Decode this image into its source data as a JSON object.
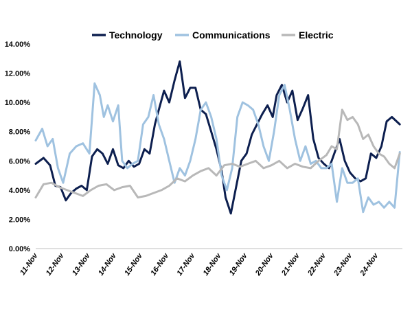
{
  "chart_data": {
    "type": "line",
    "title": "",
    "xlabel": "",
    "ylabel": "",
    "ylim": [
      0,
      14
    ],
    "y_ticks": [
      0,
      2,
      4,
      6,
      8,
      10,
      12,
      14
    ],
    "y_tick_labels": [
      "0.00%",
      "2.00%",
      "4.00%",
      "6.00%",
      "8.00%",
      "10.00%",
      "12.00%",
      "14.00%"
    ],
    "x_range": [
      0,
      14
    ],
    "x_ticks": [
      0,
      1,
      2,
      3,
      4,
      5,
      6,
      7,
      8,
      9,
      10,
      11,
      12,
      13
    ],
    "x_tick_labels": [
      "11-Nov",
      "12-Nov",
      "13-Nov",
      "14-Nov",
      "15-Nov",
      "16-Nov",
      "17-Nov",
      "18-Nov",
      "19-Nov",
      "20-Nov",
      "21-Nov",
      "22-Nov",
      "23-Nov",
      "24-Nov"
    ],
    "legend_position": "top",
    "grid": false,
    "series": [
      {
        "name": "Technology",
        "color": "#0d1f4f",
        "x": [
          0,
          0.3,
          0.55,
          0.75,
          0.95,
          1.15,
          1.35,
          1.55,
          1.75,
          1.95,
          2.15,
          2.35,
          2.55,
          2.75,
          2.95,
          3.15,
          3.35,
          3.55,
          3.75,
          3.95,
          4.15,
          4.35,
          4.55,
          4.7,
          4.9,
          5.1,
          5.3,
          5.5,
          5.7,
          5.9,
          6.1,
          6.3,
          6.5,
          6.7,
          6.9,
          7.1,
          7.25,
          7.45,
          7.65,
          7.85,
          8.05,
          8.25,
          8.45,
          8.65,
          8.85,
          9.05,
          9.2,
          9.4,
          9.6,
          9.8,
          10.0,
          10.2,
          10.4,
          10.6,
          10.8,
          11.0,
          11.2,
          11.4,
          11.6,
          11.8,
          12.0,
          12.2,
          12.4,
          12.6,
          12.8,
          13.0,
          13.2,
          13.4,
          13.6,
          13.9
        ],
        "values": [
          5.8,
          6.2,
          5.7,
          4.3,
          4.2,
          3.3,
          3.8,
          4.1,
          4.3,
          4.0,
          6.3,
          6.8,
          6.5,
          5.8,
          6.8,
          5.7,
          5.5,
          6.0,
          5.6,
          5.8,
          6.8,
          6.5,
          8.5,
          9.5,
          10.8,
          10.0,
          11.5,
          12.8,
          10.3,
          11.0,
          11.0,
          9.5,
          9.2,
          8.0,
          6.8,
          5.3,
          3.5,
          2.4,
          4.2,
          6.0,
          6.5,
          7.8,
          8.5,
          9.2,
          9.8,
          9.0,
          10.5,
          11.2,
          10.0,
          10.8,
          8.8,
          9.6,
          10.5,
          7.5,
          6.2,
          5.8,
          5.5,
          6.5,
          7.5,
          6.0,
          5.2,
          4.8,
          4.6,
          4.8,
          6.5,
          6.2,
          7.0,
          8.7,
          9.0,
          8.5
        ]
      },
      {
        "name": "Communications",
        "color": "#9fc2e0",
        "x": [
          0,
          0.25,
          0.45,
          0.65,
          0.85,
          1.05,
          1.3,
          1.55,
          1.8,
          2.05,
          2.25,
          2.45,
          2.6,
          2.75,
          2.95,
          3.15,
          3.3,
          3.5,
          3.7,
          3.9,
          4.1,
          4.3,
          4.5,
          4.7,
          4.9,
          5.1,
          5.3,
          5.5,
          5.7,
          5.9,
          6.1,
          6.3,
          6.5,
          6.7,
          6.9,
          7.1,
          7.3,
          7.5,
          7.7,
          7.9,
          8.1,
          8.3,
          8.5,
          8.7,
          8.9,
          9.1,
          9.3,
          9.5,
          9.7,
          9.9,
          10.1,
          10.3,
          10.5,
          10.7,
          10.9,
          11.1,
          11.3,
          11.5,
          11.7,
          11.9,
          12.1,
          12.3,
          12.5,
          12.7,
          12.9,
          13.1,
          13.3,
          13.5,
          13.7,
          13.9
        ],
        "values": [
          7.4,
          8.2,
          7.0,
          7.5,
          5.5,
          4.5,
          6.5,
          7.0,
          7.2,
          6.5,
          11.3,
          10.5,
          9.0,
          9.8,
          8.7,
          9.8,
          6.0,
          5.5,
          5.8,
          6.0,
          8.5,
          9.0,
          10.5,
          8.5,
          7.5,
          6.0,
          4.5,
          5.5,
          5.0,
          6.0,
          7.5,
          9.5,
          10.0,
          9.0,
          7.5,
          5.0,
          4.0,
          5.5,
          9.0,
          10.0,
          9.8,
          9.5,
          8.5,
          7.0,
          6.0,
          8.0,
          10.5,
          11.2,
          9.5,
          7.5,
          6.0,
          7.0,
          5.8,
          6.0,
          5.5,
          5.5,
          5.8,
          3.2,
          5.5,
          4.5,
          4.5,
          4.8,
          2.5,
          3.5,
          3.0,
          3.2,
          2.8,
          3.2,
          2.8,
          6.6
        ]
      },
      {
        "name": "Electric",
        "color": "#b8b8b8",
        "x": [
          0,
          0.3,
          0.6,
          0.9,
          1.2,
          1.5,
          1.8,
          2.1,
          2.4,
          2.7,
          3.0,
          3.3,
          3.6,
          3.9,
          4.2,
          4.5,
          4.8,
          5.1,
          5.4,
          5.7,
          6.0,
          6.3,
          6.6,
          6.9,
          7.2,
          7.5,
          7.8,
          8.1,
          8.4,
          8.7,
          9.0,
          9.3,
          9.6,
          9.9,
          10.2,
          10.5,
          10.8,
          11.1,
          11.3,
          11.5,
          11.7,
          11.9,
          12.1,
          12.3,
          12.5,
          12.7,
          12.9,
          13.1,
          13.3,
          13.5,
          13.7,
          13.9
        ],
        "values": [
          3.5,
          4.4,
          4.5,
          4.2,
          4.0,
          3.8,
          3.6,
          4.0,
          4.3,
          4.4,
          4.0,
          4.2,
          4.3,
          3.5,
          3.6,
          3.8,
          4.0,
          4.3,
          4.8,
          4.6,
          5.0,
          5.3,
          5.5,
          5.0,
          5.7,
          5.8,
          5.6,
          5.8,
          6.0,
          5.5,
          5.7,
          6.0,
          5.5,
          5.8,
          5.6,
          5.5,
          6.0,
          6.4,
          7.0,
          6.8,
          9.5,
          8.8,
          9.0,
          8.5,
          7.5,
          7.8,
          7.0,
          6.5,
          6.3,
          5.8,
          5.5,
          6.5
        ]
      }
    ]
  }
}
